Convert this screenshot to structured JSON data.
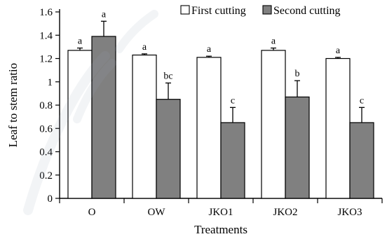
{
  "chart_data": {
    "type": "bar",
    "xlabel": "Treatments",
    "ylabel": "Leaf to stem ratio",
    "ylim": [
      0,
      1.6
    ],
    "yticks": [
      0,
      0.2,
      0.4,
      0.6,
      0.8,
      1,
      1.2,
      1.4,
      1.6
    ],
    "ytick_labels": [
      "0",
      "0.2",
      "0.4",
      "0.6",
      "0.8",
      "1",
      "1.2",
      "1.4",
      "1.6"
    ],
    "categories": [
      "O",
      "OW",
      "JKO1",
      "JKO2",
      "JKO3"
    ],
    "legend_position": "top-right",
    "grid": false,
    "series": [
      {
        "name": "First cutting",
        "color": "#ffffff",
        "values": [
          1.27,
          1.23,
          1.21,
          1.27,
          1.2
        ],
        "errors": [
          0.02,
          0.01,
          0.01,
          0.02,
          0.01
        ],
        "labels": [
          "a",
          "a",
          "a",
          "a",
          "a"
        ]
      },
      {
        "name": "Second cutting",
        "color": "#808080",
        "values": [
          1.39,
          0.85,
          0.65,
          0.87,
          0.65
        ],
        "errors": [
          0.13,
          0.14,
          0.13,
          0.14,
          0.13
        ],
        "labels": [
          "a",
          "bc",
          "c",
          "b",
          "c"
        ]
      }
    ]
  }
}
